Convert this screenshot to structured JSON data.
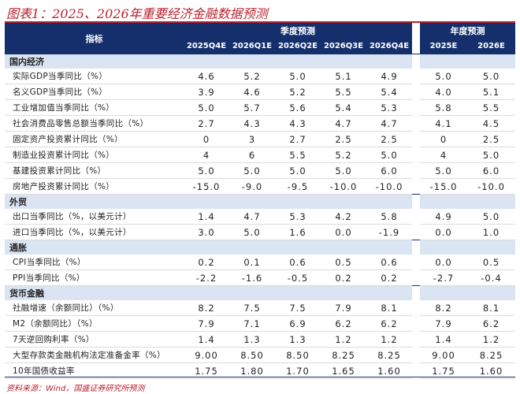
{
  "title": "图表1：2025、2026年重要经济金融数据预测",
  "header": {
    "indicator": "指标",
    "quarterly": "季度预测",
    "annual": "年度预测",
    "quarters": [
      "2025Q4E",
      "2026Q1E",
      "2026Q2E",
      "2026Q3E",
      "2026Q4E"
    ],
    "years": [
      "2025E",
      "2026E"
    ]
  },
  "sections": [
    {
      "name": "国内经济",
      "rows": [
        {
          "label": "实际GDP当季同比（%）",
          "q": [
            "4.6",
            "5.2",
            "5.0",
            "5.1",
            "4.9"
          ],
          "y": [
            "5.0",
            "5.0"
          ]
        },
        {
          "label": "名义GDP当季同比（%）",
          "q": [
            "3.9",
            "4.6",
            "5.2",
            "5.5",
            "5.4"
          ],
          "y": [
            "4.0",
            "5.1"
          ]
        },
        {
          "label": "工业增加值当季同比（%）",
          "q": [
            "5.0",
            "5.7",
            "5.6",
            "5.4",
            "5.3"
          ],
          "y": [
            "5.8",
            "5.5"
          ]
        },
        {
          "label": "社会消费品零售总额当季同比（%）",
          "q": [
            "2.7",
            "4.3",
            "4.3",
            "4.7",
            "4.7"
          ],
          "y": [
            "4.1",
            "4.5"
          ]
        },
        {
          "label": "固定资产投资累计同比（%）",
          "q": [
            "0",
            "3",
            "2.7",
            "2.5",
            "2.5"
          ],
          "y": [
            "0",
            "2.5"
          ]
        },
        {
          "label": "制造业投资累计同比（%）",
          "q": [
            "4",
            "6",
            "5.5",
            "5.2",
            "5.0"
          ],
          "y": [
            "4",
            "5.0"
          ]
        },
        {
          "label": "基建投资累计同比（%）",
          "q": [
            "5.0",
            "5.0",
            "5.0",
            "5.0",
            "6.0"
          ],
          "y": [
            "5.0",
            "6.0"
          ]
        },
        {
          "label": "房地产投资累计同比（%）",
          "q": [
            "-15.0",
            "-9.0",
            "-9.5",
            "-10.0",
            "-10.0"
          ],
          "y": [
            "-15.0",
            "-10.0"
          ]
        }
      ]
    },
    {
      "name": "外贸",
      "rows": [
        {
          "label": "出口当季同比（%，以美元计）",
          "q": [
            "1.4",
            "4.7",
            "5.3",
            "4.2",
            "5.8"
          ],
          "y": [
            "4.9",
            "5.0"
          ]
        },
        {
          "label": "进口当季同比（%，以美元计）",
          "q": [
            "3.0",
            "5.0",
            "1.6",
            "0.0",
            "-1.9"
          ],
          "y": [
            "0.0",
            "1.0"
          ]
        }
      ]
    },
    {
      "name": "通胀",
      "rows": [
        {
          "label": "CPI当季同比（%）",
          "q": [
            "0.2",
            "0.1",
            "0.6",
            "0.5",
            "0.6"
          ],
          "y": [
            "0.0",
            "0.5"
          ]
        },
        {
          "label": "PPI当季同比（%）",
          "q": [
            "-2.2",
            "-1.6",
            "-0.5",
            "0.2",
            "0.2"
          ],
          "y": [
            "-2.7",
            "-0.4"
          ]
        }
      ]
    },
    {
      "name": "货币金融",
      "rows": [
        {
          "label": "社融增速（余额同比）（%）",
          "q": [
            "8.2",
            "7.5",
            "7.5",
            "7.9",
            "8.1"
          ],
          "y": [
            "8.2",
            "8.1"
          ]
        },
        {
          "label": "M2（余额同比）（%）",
          "q": [
            "7.9",
            "7.1",
            "6.9",
            "6.2",
            "6.2"
          ],
          "y": [
            "7.9",
            "6.2"
          ]
        },
        {
          "label": "7天逆回购利率（%）",
          "q": [
            "1.4",
            "1.3",
            "1.3",
            "1.2",
            "1.2"
          ],
          "y": [
            "1.4",
            "1.2"
          ]
        },
        {
          "label": "大型存款类金融机构法定准备金率（%）",
          "q": [
            "9.00",
            "8.50",
            "8.50",
            "8.25",
            "8.25"
          ],
          "y": [
            "9.00",
            "8.25"
          ]
        },
        {
          "label": "10年国债收益率",
          "q": [
            "1.75",
            "1.80",
            "1.70",
            "1.65",
            "1.60"
          ],
          "y": [
            "1.75",
            "1.60"
          ]
        }
      ]
    }
  ],
  "source": "资料来源：Wind，国盛证券研究所预测",
  "colors": {
    "header_bg": "#152f6c",
    "section_bg": "#dbe4f3",
    "title": "#b8232f"
  }
}
